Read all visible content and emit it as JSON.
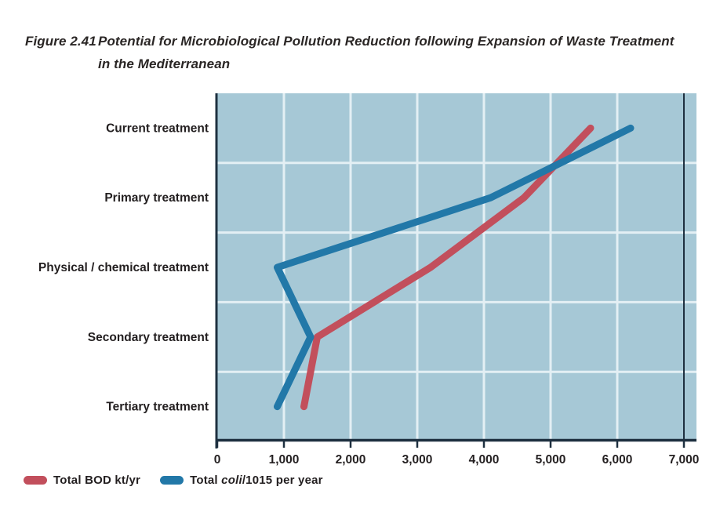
{
  "figure": {
    "label": "Figure 2.41",
    "title_line1": "Potential for Microbiological Pollution Reduction following Expansion of Waste Treatment",
    "title_line2": "in the Mediterranean"
  },
  "chart_data": {
    "type": "line",
    "orientation": "horizontal-category",
    "categories": [
      "Current treatment",
      "Primary treatment",
      "Physical / chemical treatment",
      "Secondary treatment",
      "Tertiary treatment"
    ],
    "series": [
      {
        "name": "Total BOD kt/yr",
        "color": "#c24f5c",
        "values": [
          5600,
          4600,
          3200,
          1500,
          1300
        ]
      },
      {
        "name": "Total coli/1015 per year",
        "color": "#2278a8",
        "values": [
          6200,
          4100,
          900,
          1400,
          900
        ]
      }
    ],
    "x_axis": {
      "min": 0,
      "max": 7000,
      "tick_interval": 1000,
      "tick_labels": [
        "0",
        "1,000",
        "2,000",
        "3,000",
        "4,000",
        "5,000",
        "6,000",
        "7,000"
      ]
    },
    "grid": true,
    "legend_position": "bottom-left",
    "colors": {
      "plot_background": "#a6c8d6",
      "gridline": "#e3eff4",
      "axis": "#1e3040",
      "text": "#231f20"
    }
  },
  "legend": {
    "coli_parts": {
      "prefix": "Total ",
      "italic": "coli",
      "suffix": "/1015 per year"
    }
  }
}
